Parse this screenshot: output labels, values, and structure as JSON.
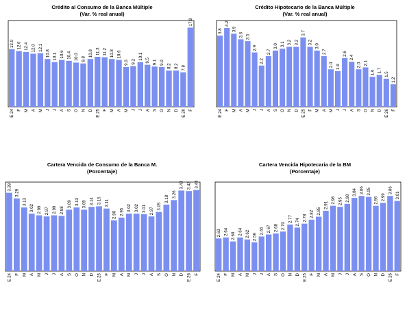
{
  "chart_data": [
    {
      "type": "bar",
      "title": "Crédito al Consumo de la Banca Múltiple",
      "subtitle": "(Var. % real anual)",
      "categories": [
        "E 24",
        "F",
        "M",
        "A",
        "M",
        "J",
        "J",
        "A",
        "S",
        "O",
        "N",
        "D",
        "E 25",
        "F",
        "M",
        "A",
        "M",
        "J",
        "J",
        "A",
        "S",
        "O",
        "N",
        "D",
        "E 26",
        "F"
      ],
      "values": [
        13.0,
        12.6,
        12.4,
        12.0,
        12.1,
        10.8,
        10.1,
        10.6,
        10.4,
        10.0,
        9.8,
        10.8,
        11.3,
        11.2,
        10.8,
        10.6,
        9.0,
        9.2,
        10.1,
        9.5,
        9.1,
        9.0,
        8.2,
        8.2,
        7.8,
        17.9
      ],
      "labels": [
        "13.0",
        "12.6",
        "12.4",
        "12.0",
        "12.1",
        "10.8",
        "10.1",
        "10.6",
        "10.4",
        "10.0",
        "9.8",
        "10.8",
        "11.3",
        "11.2",
        "10.8",
        "10.6",
        "9.0",
        "9.2",
        "10.1",
        "9.5",
        "9.1",
        "9.0",
        "8.2",
        "8.2",
        "7.8",
        "17.9"
      ],
      "ylim": [
        0,
        19.5
      ]
    },
    {
      "type": "bar",
      "title": "Crédito Hipotecario de la Banca Múltiple",
      "subtitle": "(Var. % real anual)",
      "categories": [
        "E 24",
        "F",
        "M",
        "A",
        "M",
        "J",
        "J",
        "A",
        "S",
        "O",
        "N",
        "D",
        "E 25",
        "F",
        "M",
        "A",
        "M",
        "J",
        "J",
        "A",
        "S",
        "O",
        "N",
        "D",
        "E 26",
        "F"
      ],
      "values": [
        3.8,
        4.2,
        3.9,
        3.6,
        3.5,
        2.9,
        2.2,
        2.7,
        3.0,
        3.1,
        3.2,
        3.2,
        3.7,
        3.2,
        3.0,
        2.7,
        2.0,
        1.9,
        2.6,
        2.4,
        2.0,
        2.1,
        1.6,
        1.7,
        1.5,
        1.2
      ],
      "labels": [
        "3.8",
        "4.2",
        "3.9",
        "3.6",
        "3.5",
        "2.9",
        "2.2",
        "2.7",
        "3.0",
        "3.1",
        "3.2",
        "3.2",
        "3.7",
        "3.2",
        "3.0",
        "2.7",
        "2.0",
        "1.9",
        "2.6",
        "2.4",
        "2.0",
        "2.1",
        "1.6",
        "1.7",
        "1.5",
        "1.2"
      ],
      "ylim": [
        0,
        4.6
      ]
    },
    {
      "type": "bar",
      "title": "Cartera Vencida de Consumo de la Banca M.",
      "subtitle": "(Porcentaje)",
      "categories": [
        "E 24",
        "F",
        "M",
        "A",
        "M",
        "J",
        "J",
        "A",
        "S",
        "O",
        "N",
        "D",
        "E 25",
        "F",
        "M",
        "A",
        "M",
        "J",
        "J",
        "A",
        "S",
        "O",
        "N",
        "D",
        "E 26",
        "F"
      ],
      "values": [
        3.39,
        3.29,
        3.13,
        3.02,
        2.99,
        2.97,
        2.99,
        2.98,
        3.09,
        3.13,
        3.09,
        3.14,
        3.15,
        3.11,
        2.9,
        2.95,
        3.02,
        3.02,
        3.01,
        2.97,
        3.05,
        3.18,
        3.26,
        3.43,
        3.42,
        3.44
      ],
      "labels": [
        "3.39",
        "3.29",
        "3.13",
        "3.02",
        "2.99",
        "2.97",
        "2.99",
        "2.98",
        "3.09",
        "3.13",
        "3.09",
        "3.14",
        "3.15",
        "3.11",
        "2.90",
        "2.95",
        "3.02",
        "3.02",
        "3.01",
        "2.97",
        "3.05",
        "3.18",
        "3.26",
        "3.43",
        "3.42",
        "3.44"
      ],
      "ylim": [
        2.0,
        3.58
      ]
    },
    {
      "type": "bar",
      "title": "Cartera Vencida Hipotecaria de la BM",
      "subtitle": "(Porcentaje)",
      "categories": [
        "E 24",
        "F",
        "M",
        "A",
        "M",
        "J",
        "J",
        "A",
        "S",
        "O",
        "N",
        "D",
        "E 25",
        "F",
        "M",
        "A",
        "M",
        "J",
        "J",
        "A",
        "S",
        "O",
        "N",
        "D",
        "E 26",
        "F"
      ],
      "values": [
        2.63,
        2.64,
        2.6,
        2.64,
        2.62,
        2.59,
        2.65,
        2.67,
        2.68,
        2.7,
        2.77,
        2.74,
        2.78,
        2.82,
        2.85,
        2.91,
        2.96,
        2.95,
        2.98,
        3.04,
        3.06,
        3.05,
        2.96,
        2.99,
        3.06,
        3.01
      ],
      "labels": [
        "2.63",
        "2.64",
        "2.60",
        "2.64",
        "2.62",
        "2.59",
        "2.65",
        "2.67",
        "2.68",
        "2.70",
        "2.77",
        "2.74",
        "2.78",
        "2.82",
        "2.85",
        "2.91",
        "2.96",
        "2.95",
        "2.98",
        "3.04",
        "3.06",
        "3.05",
        "2.96",
        "2.99",
        "3.06",
        "3.01"
      ],
      "ylim": [
        2.3,
        3.2
      ]
    }
  ],
  "colors": {
    "bar": "#7b8ff0"
  }
}
